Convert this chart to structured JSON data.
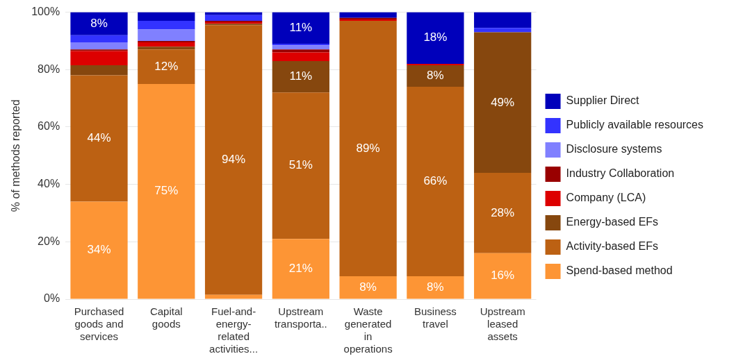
{
  "chart_data": {
    "type": "bar",
    "stacked": true,
    "ylabel": "% of methods reported",
    "categories": [
      "Purchased goods and services",
      "Capital goods",
      "Fuel-and-energy-related activities...",
      "Upstream transporta..",
      "Waste generated in operations",
      "Business travel",
      "Upstream leased assets"
    ],
    "ylim": [
      0,
      100
    ],
    "yticks": [
      {
        "value": 0,
        "label": "0%"
      },
      {
        "value": 20,
        "label": "20%"
      },
      {
        "value": 40,
        "label": "40%"
      },
      {
        "value": 60,
        "label": "60%"
      },
      {
        "value": 80,
        "label": "80%"
      },
      {
        "value": 100,
        "label": "100%"
      }
    ],
    "grid": "y",
    "legend": "right",
    "series": [
      {
        "name": "Spend-based method",
        "color": "#fd9535",
        "values": [
          34,
          75,
          1.5,
          21,
          8,
          8,
          16
        ],
        "value_labels": [
          "34%",
          "75%",
          null,
          "21%",
          "8%",
          "8%",
          "16%"
        ]
      },
      {
        "name": "Activity-based EFs",
        "color": "#bc6113",
        "values": [
          44,
          12,
          94,
          51,
          89,
          66,
          28
        ],
        "value_labels": [
          "44%",
          "12%",
          "94%",
          "51%",
          "89%",
          "66%",
          "28%"
        ]
      },
      {
        "name": "Energy-based EFs",
        "color": "#86470e",
        "values": [
          3.5,
          1,
          0.5,
          11,
          0,
          7.5,
          49
        ],
        "value_labels": [
          null,
          null,
          null,
          "11%",
          null,
          "8%",
          "49%"
        ]
      },
      {
        "name": "Company (LCA)",
        "color": "#dd0000",
        "values": [
          5,
          1.5,
          0.5,
          3,
          0.5,
          0.5,
          0
        ],
        "value_labels": [
          null,
          null,
          null,
          null,
          null,
          null,
          null
        ]
      },
      {
        "name": "Industry Collaboration",
        "color": "#990000",
        "values": [
          0.5,
          0.5,
          0.5,
          1,
          0.5,
          0,
          0
        ],
        "value_labels": [
          null,
          null,
          null,
          null,
          null,
          null,
          null
        ]
      },
      {
        "name": "Disclosure systems",
        "color": "#8080ff",
        "values": [
          2.5,
          4,
          0,
          1.5,
          0,
          0,
          0
        ],
        "value_labels": [
          null,
          null,
          null,
          null,
          null,
          null,
          null
        ]
      },
      {
        "name": "Publicly available resources",
        "color": "#3333ff",
        "values": [
          2.5,
          3,
          2,
          0.5,
          0,
          0,
          1.5
        ],
        "value_labels": [
          null,
          null,
          null,
          null,
          null,
          null,
          null
        ]
      },
      {
        "name": "Supplier Direct",
        "color": "#0000bb",
        "values": [
          8,
          3,
          1,
          11,
          2,
          18,
          5.5
        ],
        "value_labels": [
          "8%",
          null,
          null,
          "11%",
          null,
          "18%",
          null
        ]
      }
    ]
  }
}
